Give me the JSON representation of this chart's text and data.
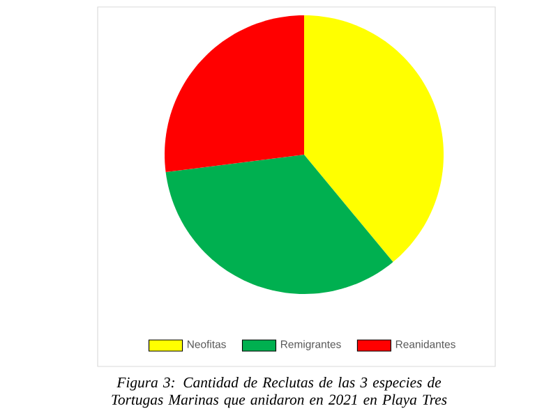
{
  "chart_data": {
    "type": "pie",
    "categories": [
      "Neofitas",
      "Remigrantes",
      "Reanidantes"
    ],
    "values": [
      39,
      34,
      27
    ],
    "colors": [
      "#ffff00",
      "#00b050",
      "#ff0000"
    ],
    "legend": "bottom",
    "annotations": [
      "*Figura 3: Cantidad de Reclutas de las 3 especies de Tortugas Marinas que anidaron en 2021 en Playa Tres*"
    ]
  }
}
